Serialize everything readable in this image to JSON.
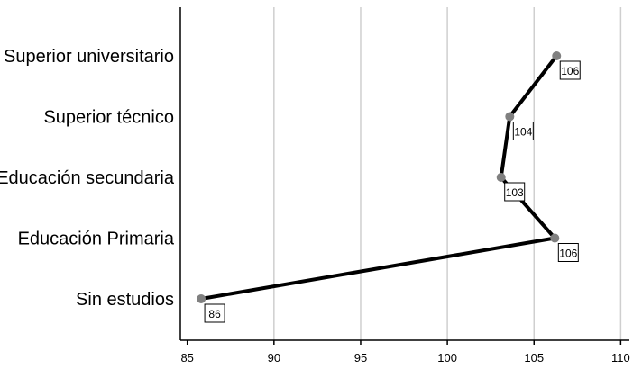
{
  "chart_data": {
    "type": "line",
    "orientation": "horizontal",
    "categories": [
      "Superior universitario",
      "Superior técnico",
      "Educación secundaria",
      "Educación Primaria",
      "Sin estudios"
    ],
    "values": [
      106.3,
      103.6,
      103.1,
      106.2,
      85.8
    ],
    "data_labels": [
      "106",
      "104",
      "103",
      "106",
      "86"
    ],
    "xlim": [
      84.6,
      110.5
    ],
    "xticks": [
      85,
      90,
      95,
      100,
      105,
      110
    ],
    "grid": "vertical",
    "line_color": "#000000",
    "point_color": "#808080",
    "grid_color": "#cfcfcf"
  }
}
